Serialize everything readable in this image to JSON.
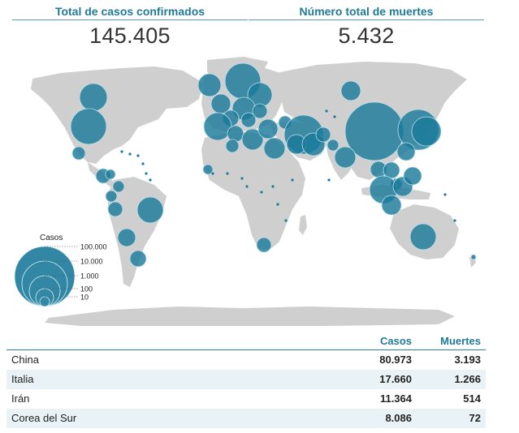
{
  "summary": {
    "confirmed_label": "Total de casos confirmados",
    "confirmed_value": "145.405",
    "deaths_label": "Número total de muertes",
    "deaths_value": "5.432"
  },
  "legend": {
    "title": "Casos",
    "entries": [
      "100.000",
      "10.000",
      "1.000",
      "100",
      "10"
    ]
  },
  "colors": {
    "bubble": "#1b7a9a",
    "bubble_stroke": "#bfe0eb",
    "land": "#cfcfcf",
    "accent": "#1f7a98"
  },
  "table": {
    "headers": {
      "cases": "Casos",
      "deaths": "Muertes"
    },
    "rows": [
      {
        "country": "China",
        "cases": "80.973",
        "deaths": "3.193"
      },
      {
        "country": "Italia",
        "cases": "17.660",
        "deaths": "1.266"
      },
      {
        "country": "Irán",
        "cases": "11.364",
        "deaths": "514"
      },
      {
        "country": "Corea del Sur",
        "cases": "8.086",
        "deaths": "72"
      }
    ]
  }
}
